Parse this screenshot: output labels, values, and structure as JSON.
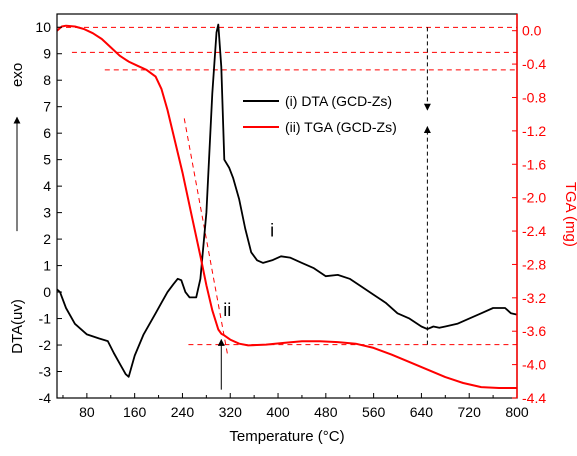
{
  "chart_data": {
    "type": "line",
    "xlabel": "Temperature (°C)",
    "ylabel_left": "DTA(uv)",
    "ylabel_left_extra": "exo",
    "ylabel_right": "TGA (mg)",
    "xlim": [
      30,
      800
    ],
    "ylim_left": [
      -4,
      10.5
    ],
    "ylim_right": [
      -4.4,
      0.2
    ],
    "x_ticks": [
      80,
      160,
      240,
      320,
      400,
      480,
      560,
      640,
      720,
      800
    ],
    "y_left_ticks": [
      -4,
      -3,
      -2,
      -1,
      0,
      1,
      2,
      3,
      4,
      5,
      6,
      7,
      8,
      9,
      10
    ],
    "y_right_ticks": [
      0.0,
      -0.4,
      -0.8,
      -1.2,
      -1.6,
      -2.0,
      -2.4,
      -2.8,
      -3.2,
      -3.6,
      -4.0,
      -4.4
    ],
    "y_right_tick_labels": [
      "0.0",
      "-0.4",
      "-0.8",
      "-1.2",
      "-1.6",
      "-2.0",
      "-2.4",
      "-2.8",
      "-3.2",
      "-3.6",
      "-4.0",
      "-4.4"
    ],
    "legend_position": "top-center",
    "colors": {
      "dta": "#000000",
      "tga": "#ff0000"
    },
    "series": [
      {
        "name": "(i) DTA (GCD-Zs)",
        "axis": "left",
        "color": "#000000",
        "x": [
          30,
          35,
          45,
          60,
          80,
          100,
          115,
          125,
          135,
          145,
          150,
          160,
          175,
          195,
          205,
          215,
          225,
          232,
          238,
          245,
          252,
          258,
          263,
          270,
          280,
          290,
          297,
          300,
          305,
          310,
          318,
          325,
          335,
          345,
          355,
          365,
          375,
          390,
          405,
          420,
          440,
          460,
          480,
          500,
          520,
          540,
          560,
          580,
          600,
          620,
          640,
          650,
          660,
          670,
          680,
          700,
          720,
          740,
          760,
          780,
          790,
          800
        ],
        "y": [
          0.1,
          0.0,
          -0.6,
          -1.2,
          -1.6,
          -1.75,
          -1.85,
          -2.3,
          -2.7,
          -3.1,
          -3.2,
          -2.4,
          -1.6,
          -0.8,
          -0.4,
          0.0,
          0.3,
          0.5,
          0.45,
          0.0,
          -0.2,
          -0.2,
          -0.2,
          0.5,
          3.0,
          7.5,
          9.8,
          10.1,
          8.5,
          5.0,
          4.7,
          4.3,
          3.5,
          2.4,
          1.5,
          1.2,
          1.1,
          1.2,
          1.35,
          1.3,
          1.1,
          0.9,
          0.6,
          0.65,
          0.5,
          0.2,
          -0.1,
          -0.4,
          -0.8,
          -1.0,
          -1.3,
          -1.4,
          -1.3,
          -1.35,
          -1.3,
          -1.2,
          -1.0,
          -0.8,
          -0.6,
          -0.6,
          -0.8,
          -0.85
        ]
      },
      {
        "name": "(ii) TGA (GCD-Zs)",
        "axis": "right",
        "color": "#ff0000",
        "x": [
          30,
          38,
          45,
          60,
          75,
          90,
          105,
          120,
          135,
          150,
          165,
          180,
          195,
          205,
          215,
          225,
          240,
          255,
          270,
          280,
          290,
          300,
          305,
          310,
          320,
          335,
          350,
          380,
          410,
          440,
          470,
          500,
          530,
          560,
          590,
          620,
          650,
          680,
          710,
          740,
          770,
          800
        ],
        "y": [
          0.0,
          0.05,
          0.06,
          0.05,
          0.02,
          -0.03,
          -0.1,
          -0.2,
          -0.3,
          -0.37,
          -0.42,
          -0.47,
          -0.55,
          -0.7,
          -0.95,
          -1.25,
          -1.7,
          -2.2,
          -2.7,
          -3.05,
          -3.35,
          -3.58,
          -3.63,
          -3.65,
          -3.7,
          -3.75,
          -3.77,
          -3.76,
          -3.74,
          -3.72,
          -3.72,
          -3.73,
          -3.75,
          -3.8,
          -3.88,
          -3.97,
          -4.06,
          -4.15,
          -4.22,
          -4.27,
          -4.28,
          -4.28
        ]
      }
    ],
    "annotations": [
      {
        "text": "i",
        "x": 390,
        "y": 2.1,
        "axis": "left"
      },
      {
        "text": "ii",
        "x": 315,
        "y": -0.9,
        "axis": "left"
      }
    ],
    "reference_lines": [
      {
        "axis": "right",
        "y": 0.04,
        "x_from": 30,
        "x_to": 800
      },
      {
        "axis": "right",
        "y": -0.26,
        "x_from": 55,
        "x_to": 800
      },
      {
        "axis": "right",
        "y": -0.47,
        "x_from": 110,
        "x_to": 800
      },
      {
        "axis": "right",
        "y": -3.76,
        "x_from": 250,
        "x_to": 800
      }
    ],
    "tangent_lines": [
      {
        "axis": "right",
        "x1": 243,
        "y1": -1.05,
        "x2": 316,
        "y2": -3.9
      }
    ],
    "arrows": [
      {
        "axis": "right",
        "x": 650,
        "y_from": 0.04,
        "y_to": -0.95
      },
      {
        "axis": "right",
        "x": 650,
        "y_from": -3.76,
        "y_to": -1.15
      },
      {
        "axis": "right",
        "x": 305,
        "y_from": -4.3,
        "y_to": -3.7
      }
    ]
  }
}
